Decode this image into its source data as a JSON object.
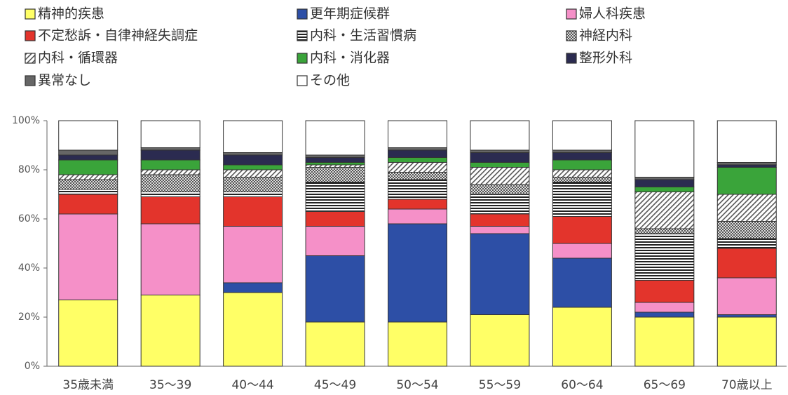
{
  "chart_data": {
    "type": "stacked_bar",
    "categories": [
      "35歳未満",
      "35～39",
      "40～44",
      "45～49",
      "50～54",
      "55～59",
      "60～64",
      "65～69",
      "70歳以上"
    ],
    "series": [
      {
        "name": "精神的疾患",
        "color": "#ffff66",
        "pattern": "solid",
        "values": [
          27,
          29,
          30,
          18,
          18,
          21,
          24,
          20,
          20
        ]
      },
      {
        "name": "更年期症候群",
        "color": "#2d4fa6",
        "pattern": "solid",
        "values": [
          0,
          0,
          4,
          27,
          40,
          33,
          20,
          2,
          1
        ]
      },
      {
        "name": "婦人科疾患",
        "color": "#f590c8",
        "pattern": "solid",
        "values": [
          35,
          29,
          23,
          12,
          6,
          3,
          6,
          4,
          15
        ]
      },
      {
        "name": "不定愁訴・自律神経失調症",
        "color": "#e3342c",
        "pattern": "solid",
        "values": [
          8,
          11,
          12,
          6,
          4,
          5,
          11,
          9,
          12
        ]
      },
      {
        "name": "内科・生活習慣病",
        "color": "#222222",
        "pattern": "hstripes",
        "values": [
          2,
          2,
          2,
          12,
          8,
          8,
          14,
          19,
          4
        ]
      },
      {
        "name": "神経内科",
        "color": "#555555",
        "pattern": "crosshatch",
        "values": [
          4,
          7,
          6,
          6,
          3,
          4,
          2,
          2,
          7
        ]
      },
      {
        "name": "内科・循環器",
        "color": "#555555",
        "pattern": "diagonal",
        "values": [
          2,
          2,
          3,
          1,
          4,
          7,
          3,
          15,
          11
        ]
      },
      {
        "name": "内科・消化器",
        "color": "#3aa43a",
        "pattern": "solid",
        "values": [
          6,
          4,
          2,
          1,
          2,
          2,
          4,
          2,
          11
        ]
      },
      {
        "name": "整形外科",
        "color": "#2b2b50",
        "pattern": "solid",
        "values": [
          2,
          4,
          4,
          2,
          3,
          4,
          3,
          3,
          1
        ]
      },
      {
        "name": "異常なし",
        "color": "#666666",
        "pattern": "solid",
        "values": [
          2,
          1,
          1,
          1,
          1,
          1,
          1,
          1,
          1
        ]
      },
      {
        "name": "その他",
        "color": "#ffffff",
        "pattern": "solid",
        "values": [
          12,
          11,
          13,
          14,
          11,
          12,
          12,
          23,
          17
        ]
      }
    ],
    "ylim": [
      0,
      100
    ],
    "yticks": [
      {
        "value": 0,
        "label": "0%"
      },
      {
        "value": 20,
        "label": "20%"
      },
      {
        "value": 40,
        "label": "40%"
      },
      {
        "value": 60,
        "label": "60%"
      },
      {
        "value": 80,
        "label": "80%"
      },
      {
        "value": 100,
        "label": "100%"
      }
    ],
    "legend": "top"
  }
}
